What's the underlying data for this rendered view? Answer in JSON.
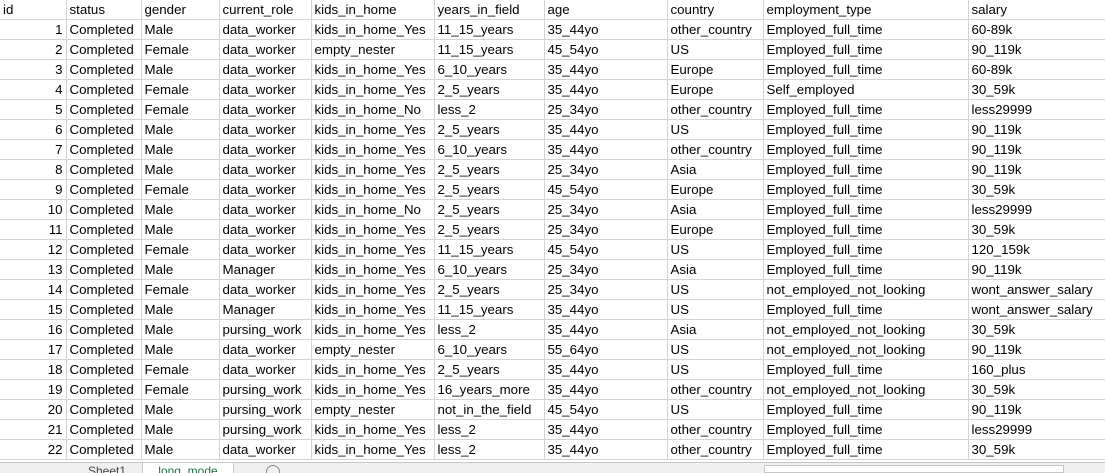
{
  "columns": [
    "id",
    "status",
    "gender",
    "current_role",
    "kids_in_home",
    "years_in_field",
    "age",
    "country",
    "employment_type",
    "salary"
  ],
  "rows": [
    [
      "1",
      "Completed",
      "Male",
      "data_worker",
      "kids_in_home_Yes",
      "11_15_years",
      "35_44yo",
      "other_country",
      "Employed_full_time",
      "60-89k"
    ],
    [
      "2",
      "Completed",
      "Female",
      "data_worker",
      "empty_nester",
      "11_15_years",
      "45_54yo",
      "US",
      "Employed_full_time",
      "90_119k"
    ],
    [
      "3",
      "Completed",
      "Male",
      "data_worker",
      "kids_in_home_Yes",
      "6_10_years",
      "35_44yo",
      "Europe",
      "Employed_full_time",
      "60-89k"
    ],
    [
      "4",
      "Completed",
      "Female",
      "data_worker",
      "kids_in_home_Yes",
      "2_5_years",
      "35_44yo",
      "Europe",
      "Self_employed",
      "30_59k"
    ],
    [
      "5",
      "Completed",
      "Female",
      "data_worker",
      "kids_in_home_No",
      "less_2",
      "25_34yo",
      "other_country",
      "Employed_full_time",
      "less29999"
    ],
    [
      "6",
      "Completed",
      "Male",
      "data_worker",
      "kids_in_home_Yes",
      "2_5_years",
      "35_44yo",
      "US",
      "Employed_full_time",
      "90_119k"
    ],
    [
      "7",
      "Completed",
      "Male",
      "data_worker",
      "kids_in_home_Yes",
      "6_10_years",
      "35_44yo",
      "other_country",
      "Employed_full_time",
      "90_119k"
    ],
    [
      "8",
      "Completed",
      "Male",
      "data_worker",
      "kids_in_home_Yes",
      "2_5_years",
      "25_34yo",
      "Asia",
      "Employed_full_time",
      "90_119k"
    ],
    [
      "9",
      "Completed",
      "Female",
      "data_worker",
      "kids_in_home_Yes",
      "2_5_years",
      "45_54yo",
      "Europe",
      "Employed_full_time",
      "30_59k"
    ],
    [
      "10",
      "Completed",
      "Male",
      "data_worker",
      "kids_in_home_No",
      "2_5_years",
      "25_34yo",
      "Asia",
      "Employed_full_time",
      "less29999"
    ],
    [
      "11",
      "Completed",
      "Male",
      "data_worker",
      "kids_in_home_Yes",
      "2_5_years",
      "25_34yo",
      "Europe",
      "Employed_full_time",
      "30_59k"
    ],
    [
      "12",
      "Completed",
      "Female",
      "data_worker",
      "kids_in_home_Yes",
      "11_15_years",
      "45_54yo",
      "US",
      "Employed_full_time",
      "120_159k"
    ],
    [
      "13",
      "Completed",
      "Male",
      "Manager",
      "kids_in_home_Yes",
      "6_10_years",
      "25_34yo",
      "Asia",
      "Employed_full_time",
      "90_119k"
    ],
    [
      "14",
      "Completed",
      "Female",
      "data_worker",
      "kids_in_home_Yes",
      "2_5_years",
      "25_34yo",
      "US",
      "not_employed_not_looking",
      "wont_answer_salary"
    ],
    [
      "15",
      "Completed",
      "Male",
      "Manager",
      "kids_in_home_Yes",
      "11_15_years",
      "35_44yo",
      "US",
      "Employed_full_time",
      "wont_answer_salary"
    ],
    [
      "16",
      "Completed",
      "Male",
      "pursing_work",
      "kids_in_home_Yes",
      "less_2",
      "35_44yo",
      "Asia",
      "not_employed_not_looking",
      "30_59k"
    ],
    [
      "17",
      "Completed",
      "Male",
      "data_worker",
      "empty_nester",
      "6_10_years",
      "55_64yo",
      "US",
      "not_employed_not_looking",
      "90_119k"
    ],
    [
      "18",
      "Completed",
      "Female",
      "data_worker",
      "kids_in_home_Yes",
      "2_5_years",
      "35_44yo",
      "US",
      "Employed_full_time",
      "160_plus"
    ],
    [
      "19",
      "Completed",
      "Female",
      "pursing_work",
      "kids_in_home_Yes",
      "16_years_more",
      "35_44yo",
      "other_country",
      "not_employed_not_looking",
      "30_59k"
    ],
    [
      "20",
      "Completed",
      "Male",
      "pursing_work",
      "empty_nester",
      "not_in_the_field",
      "45_54yo",
      "US",
      "Employed_full_time",
      "90_119k"
    ],
    [
      "21",
      "Completed",
      "Male",
      "pursing_work",
      "kids_in_home_Yes",
      "less_2",
      "35_44yo",
      "other_country",
      "Employed_full_time",
      "less29999"
    ],
    [
      "22",
      "Completed",
      "Male",
      "data_worker",
      "kids_in_home_Yes",
      "less_2",
      "35_44yo",
      "other_country",
      "Employed_full_time",
      "30_59k"
    ]
  ],
  "sheet_tabs": [
    {
      "label": "Sheet1",
      "active": false
    },
    {
      "label": "long_mode",
      "active": true
    }
  ],
  "icons": {
    "add_sheet": "plus-circle-icon"
  },
  "colors": {
    "gridline": "#d4d4d4",
    "active_tab_text": "#1e7145"
  }
}
